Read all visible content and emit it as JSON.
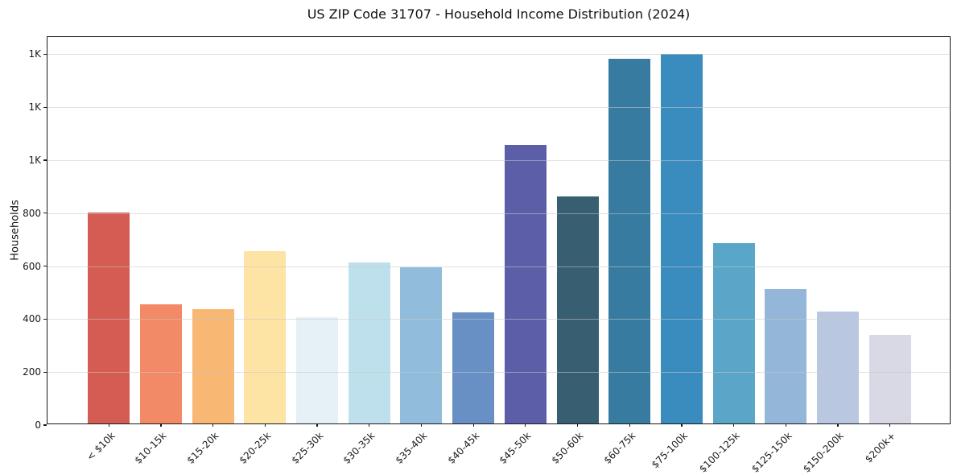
{
  "chart_data": {
    "type": "bar",
    "title": "US ZIP Code 31707 - Household Income Distribution (2024)",
    "xlabel": "",
    "ylabel": "Households",
    "categories": [
      "< $10k",
      "$10-15k",
      "$15-20k",
      "$20-25k",
      "$25-30k",
      "$30-35k",
      "$35-40k",
      "$40-45k",
      "$45-50k",
      "$50-60k",
      "$60-75k",
      "$75-100k",
      "$100-125k",
      "$125-150k",
      "$150-200k",
      "$200k+"
    ],
    "values": [
      795,
      450,
      432,
      649,
      400,
      609,
      589,
      419,
      1052,
      856,
      1376,
      1395,
      680,
      507,
      423,
      335
    ],
    "bar_colors": [
      "#d55c52",
      "#f28967",
      "#f9b774",
      "#fde3a4",
      "#e5f1f7",
      "#bee0ec",
      "#92bcdb",
      "#6890c4",
      "#5c5fa8",
      "#385e71",
      "#387ba0",
      "#3a8cbe",
      "#5aa6c9",
      "#94b6d8",
      "#b9c8e0",
      "#d8d9e5"
    ],
    "ylim": [
      0,
      1465
    ],
    "yticks": [
      0,
      200,
      400,
      600,
      800,
      1000,
      1200,
      1400
    ],
    "ytick_labels": [
      "0",
      "200",
      "400",
      "600",
      "800",
      "1K",
      "1K",
      "1K"
    ],
    "grid": "horizontal-over-bars",
    "legend": "none",
    "background_color": "#ffffff",
    "spine_color": "#1a1a1a",
    "grid_color": "#c8c8c8",
    "text_color": "#1a1a1a"
  }
}
